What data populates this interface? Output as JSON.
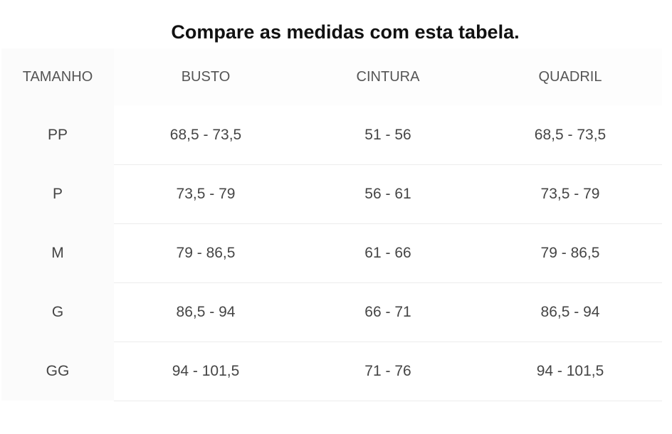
{
  "title": "Compare as medidas com esta tabela.",
  "table": {
    "header": [
      "TAMANHO",
      "BUSTO",
      "CINTURA",
      "QUADRIL"
    ],
    "rows": [
      [
        "PP",
        "68,5 - 73,5",
        "51 - 56",
        "68,5 - 73,5"
      ],
      [
        "P",
        "73,5 - 79",
        "56 - 61",
        "73,5 - 79"
      ],
      [
        "M",
        "79 - 86,5",
        "61 - 66",
        "79 - 86,5"
      ],
      [
        "G",
        "86,5 - 94",
        "66 - 71",
        "86,5 - 94"
      ],
      [
        "GG",
        "94 - 101,5",
        "71 - 76",
        "94 - 101,5"
      ]
    ]
  }
}
